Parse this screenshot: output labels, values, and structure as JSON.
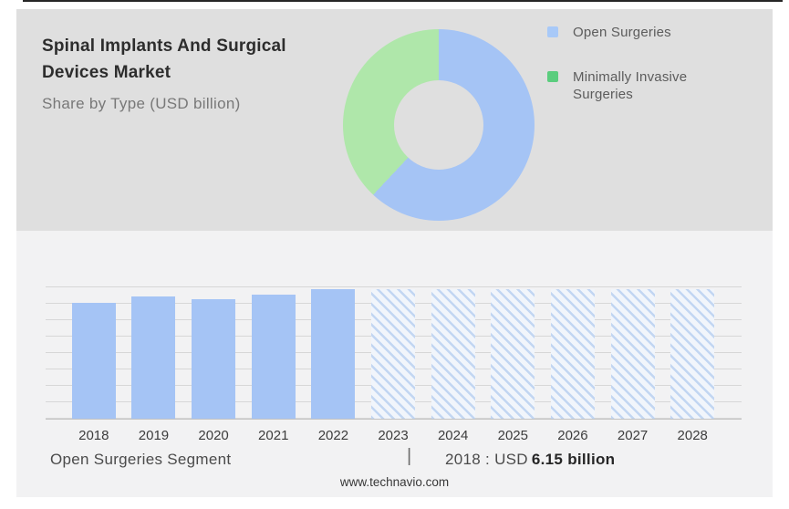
{
  "header": {
    "title": "Spinal Implants And Surgical Devices Market",
    "subtitle": "Share by Type (USD billion)"
  },
  "legend": {
    "items": [
      {
        "label": "Open Surgeries",
        "color": "#a8c9f8"
      },
      {
        "label": "Minimally Invasive Surgeries",
        "color": "#5bcd7e"
      }
    ]
  },
  "chart_data": [
    {
      "type": "pie",
      "donut": true,
      "title": "Share by Type (USD billion)",
      "legend_position": "right",
      "slices": [
        {
          "label": "Open Surgeries",
          "percent": 62,
          "color": "#a5c4f5"
        },
        {
          "label": "Minimally Invasive Surgeries",
          "percent": 38,
          "color": "#afe7aa"
        }
      ]
    },
    {
      "type": "bar",
      "categories": [
        "2018",
        "2019",
        "2020",
        "2021",
        "2022",
        "2023",
        "2024",
        "2025",
        "2026",
        "2027",
        "2028"
      ],
      "values": [
        6.15,
        6.5,
        6.35,
        6.6,
        6.9,
        6.9,
        6.9,
        6.9,
        6.9,
        6.9,
        6.9
      ],
      "forecast_categories": [
        "2023",
        "2024",
        "2025",
        "2026",
        "2027",
        "2028"
      ],
      "forecast_style": "diagonal-hatch",
      "ylim": [
        0,
        6.9
      ],
      "grid": true,
      "bar_color": "#a5c4f5",
      "labeled_point": {
        "category": "2018",
        "text": "2018 : USD 6.15 billion"
      }
    }
  ],
  "footer": {
    "segment_label": "Open Surgeries Segment",
    "separator": "|",
    "value_prefix": "2018 : USD",
    "value_bold": "6.15 billion",
    "source": "www.technavio.com"
  }
}
